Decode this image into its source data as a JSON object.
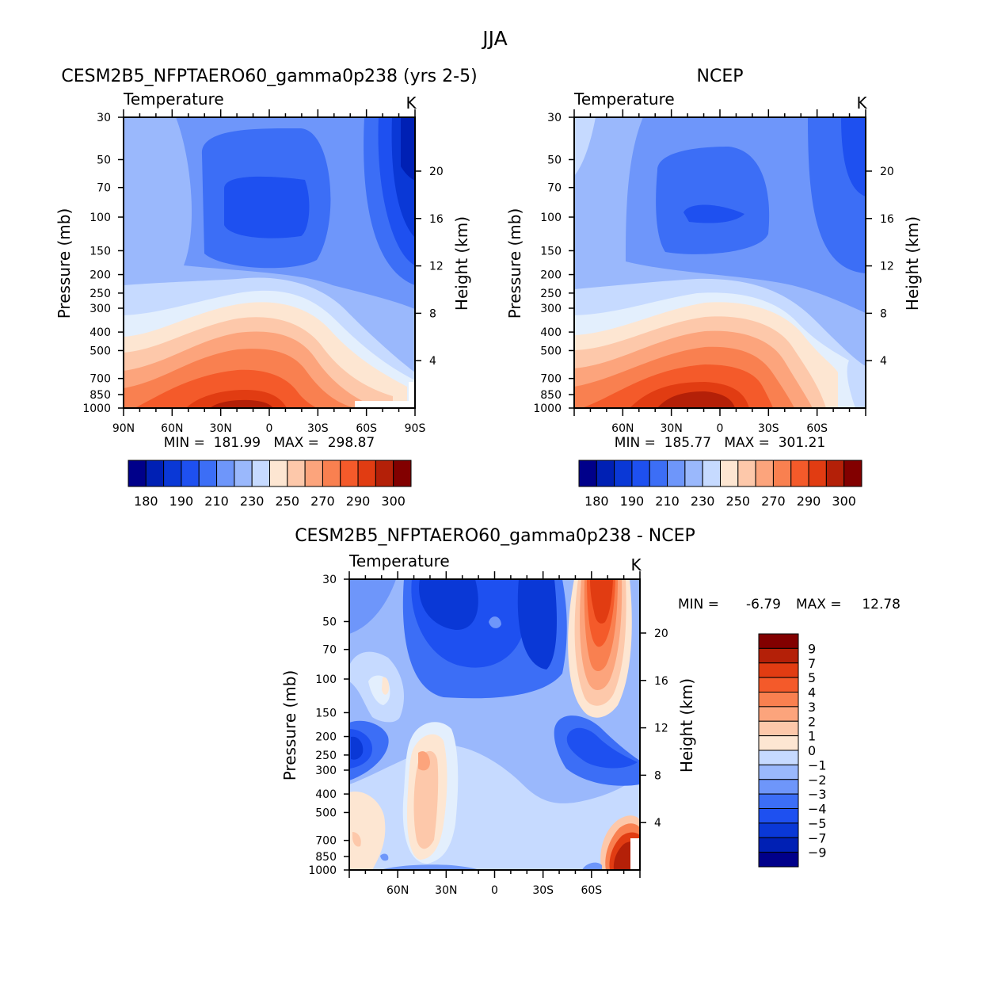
{
  "figure_title": "JJA",
  "chart_data": [
    {
      "type": "heatmap",
      "title": "CESM2B5_NFPTAERO60_gamma0p238 (yrs 2-5)",
      "subtitle": "Temperature",
      "units": "K",
      "xlabel": "",
      "ylabel": "Pressure (mb)",
      "ylabel_right": "Height (km)",
      "x_ticks": [
        "90N",
        "60N",
        "30N",
        "0",
        "30S",
        "60S",
        "90S"
      ],
      "y_ticks": [
        "30",
        "50",
        "70",
        "100",
        "150",
        "200",
        "250",
        "300",
        "400",
        "500",
        "700",
        "850",
        "1000"
      ],
      "right_ticks": [
        "20",
        "16",
        "12",
        "8",
        "4"
      ],
      "xlim": [
        90,
        -90
      ],
      "ylim": [
        1000,
        30
      ],
      "stats_text": "MIN =  181.99   MAX =  298.87",
      "min": 181.99,
      "max": 298.87,
      "levels": [
        180,
        190,
        200,
        210,
        220,
        230,
        240,
        250,
        260,
        270,
        280,
        290,
        295,
        300,
        305
      ],
      "legend_labels": [
        "180",
        "190",
        "210",
        "230",
        "250",
        "270",
        "290",
        "300"
      ],
      "legend_placement": "bottom"
    },
    {
      "type": "heatmap",
      "title": "NCEP",
      "subtitle": "Temperature",
      "units": "K",
      "xlabel": "",
      "ylabel": "Pressure (mb)",
      "ylabel_right": "Height (km)",
      "x_ticks": [
        "60N",
        "30N",
        "0",
        "30S",
        "60S"
      ],
      "y_ticks": [
        "30",
        "50",
        "70",
        "100",
        "150",
        "200",
        "250",
        "300",
        "400",
        "500",
        "700",
        "850",
        "1000"
      ],
      "right_ticks": [
        "20",
        "16",
        "12",
        "8",
        "4"
      ],
      "xlim": [
        90,
        -90
      ],
      "ylim": [
        1000,
        30
      ],
      "stats_text": "MIN =  185.77   MAX =  301.21",
      "min": 185.77,
      "max": 301.21,
      "levels": [
        180,
        190,
        200,
        210,
        220,
        230,
        240,
        250,
        260,
        270,
        280,
        290,
        295,
        300,
        305
      ],
      "legend_labels": [
        "180",
        "190",
        "210",
        "230",
        "250",
        "270",
        "290",
        "300"
      ],
      "legend_placement": "bottom"
    },
    {
      "type": "heatmap",
      "title": "CESM2B5_NFPTAERO60_gamma0p238 - NCEP",
      "subtitle": "Temperature",
      "units": "K",
      "xlabel": "",
      "ylabel": "Pressure (mb)",
      "ylabel_right": "Height (km)",
      "x_ticks": [
        "60N",
        "30N",
        "0",
        "30S",
        "60S"
      ],
      "y_ticks": [
        "30",
        "50",
        "70",
        "100",
        "150",
        "200",
        "250",
        "300",
        "400",
        "500",
        "700",
        "850",
        "1000"
      ],
      "right_ticks": [
        "20",
        "16",
        "12",
        "8",
        "4"
      ],
      "xlim": [
        90,
        -90
      ],
      "ylim": [
        1000,
        30
      ],
      "stats_min_label": "MIN =",
      "stats_min_value": "-6.79",
      "stats_max_label": "MAX =",
      "stats_max_value": "12.78",
      "min": -6.79,
      "max": 12.78,
      "levels": [
        -9,
        -7,
        -5,
        -4,
        -3,
        -2,
        -1,
        0,
        1,
        2,
        3,
        4,
        5,
        7,
        9
      ],
      "legend_labels": [
        "9",
        "7",
        "5",
        "4",
        "3",
        "2",
        "1",
        "0",
        "−1",
        "−2",
        "−3",
        "−4",
        "−5",
        "−7",
        "−9"
      ],
      "legend_placement": "right"
    }
  ],
  "colors": {
    "palette": [
      "#00008a",
      "#0020b4",
      "#0a38d6",
      "#1e50f0",
      "#3c6ef6",
      "#6e96fa",
      "#9ab8fc",
      "#c6daff",
      "#e3effd",
      "#fde6d2",
      "#fdc8aa",
      "#fca47c",
      "#f98050",
      "#f45a2a",
      "#e13c12",
      "#b42008",
      "#820000"
    ]
  }
}
